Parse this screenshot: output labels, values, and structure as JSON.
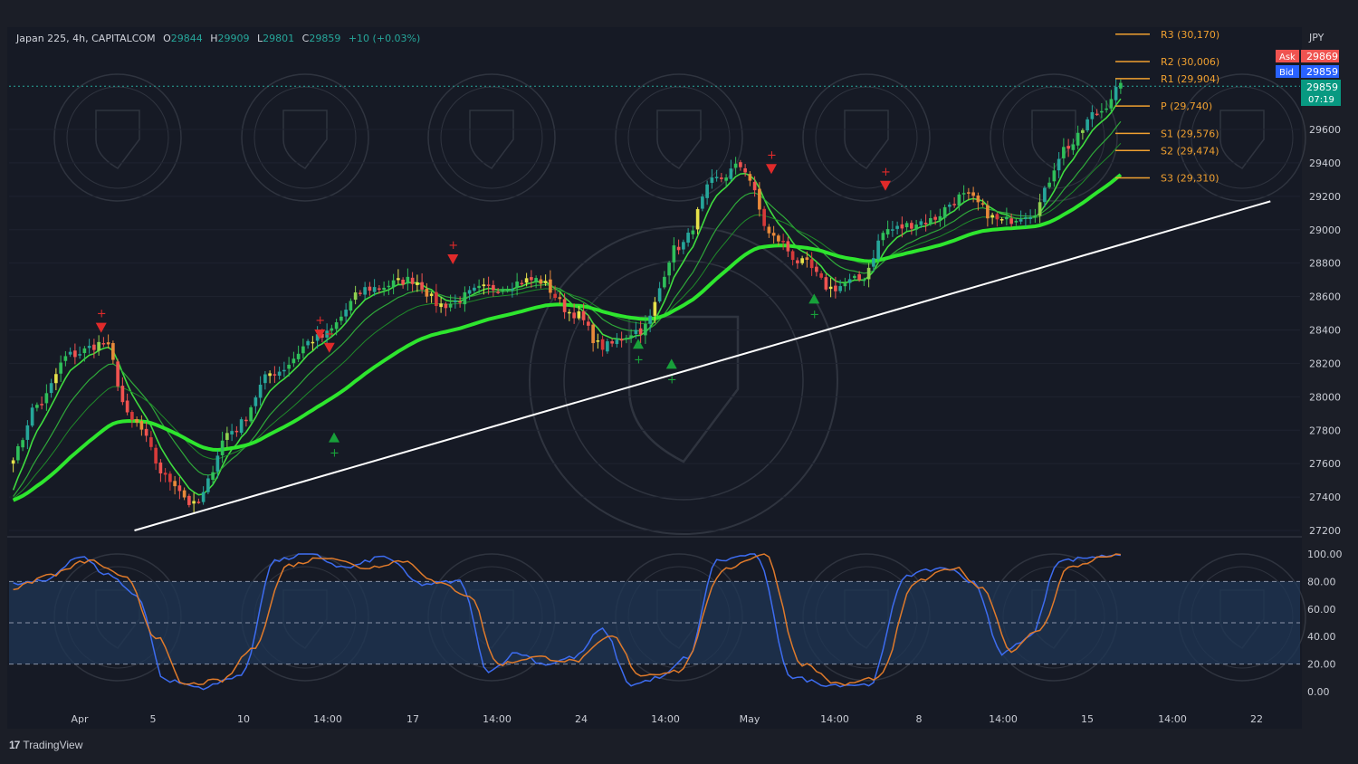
{
  "header": {
    "symbol": "Japan 225, 4h, CAPITALCOM",
    "o_label": "O",
    "o_value": "29844",
    "h_label": "H",
    "h_value": "29909",
    "l_label": "L",
    "l_value": "29801",
    "c_label": "C",
    "c_value": "29859",
    "change": "+10 (+0.03%)"
  },
  "price_scale": {
    "currency": "JPY",
    "ask_label": "Ask",
    "ask_value": "29869",
    "bid_label": "Bid",
    "bid_value": "29859",
    "last_value": "29859",
    "countdown": "07:19"
  },
  "brand": {
    "name": "TradingView"
  },
  "colors": {
    "background": "#161a25",
    "bull": "#26a69a",
    "bear": "#ef5350",
    "ema_fast": "#38e64a",
    "ema_slow": "#2ee62e",
    "pivot": "#f0a030",
    "trendline": "#ffffff",
    "stoch_k": "#3d6cf0",
    "stoch_d": "#e07a2a",
    "stoch_band": "#1f3654"
  },
  "chart_data": [
    {
      "type": "candlestick",
      "timeframe": "4h",
      "y_ticks": [
        27200,
        27400,
        27600,
        27800,
        28000,
        28200,
        28400,
        28600,
        28800,
        29000,
        29200,
        29400,
        29600
      ],
      "ylim": [
        27150,
        30200
      ],
      "x_tick_labels": [
        "Apr",
        "5",
        "10",
        "14:00",
        "17",
        "14:00",
        "24",
        "14:00",
        "May",
        "14:00",
        "8",
        "14:00",
        "15",
        "14:00",
        "22"
      ],
      "price_path_keypoints": [
        {
          "i": 0,
          "price": 27650
        },
        {
          "i": 5,
          "price": 27950
        },
        {
          "i": 12,
          "price": 28250
        },
        {
          "i": 19,
          "price": 28320
        },
        {
          "i": 25,
          "price": 27850
        },
        {
          "i": 33,
          "price": 27500
        },
        {
          "i": 38,
          "price": 27350
        },
        {
          "i": 46,
          "price": 27800
        },
        {
          "i": 55,
          "price": 28150
        },
        {
          "i": 64,
          "price": 28350
        },
        {
          "i": 75,
          "price": 28650
        },
        {
          "i": 84,
          "price": 28700
        },
        {
          "i": 90,
          "price": 28550
        },
        {
          "i": 100,
          "price": 28650
        },
        {
          "i": 110,
          "price": 28700
        },
        {
          "i": 118,
          "price": 28500
        },
        {
          "i": 124,
          "price": 28300
        },
        {
          "i": 132,
          "price": 28400
        },
        {
          "i": 140,
          "price": 28900
        },
        {
          "i": 148,
          "price": 29300
        },
        {
          "i": 153,
          "price": 29380
        },
        {
          "i": 160,
          "price": 28950
        },
        {
          "i": 166,
          "price": 28800
        },
        {
          "i": 172,
          "price": 28650
        },
        {
          "i": 178,
          "price": 28700
        },
        {
          "i": 184,
          "price": 29000
        },
        {
          "i": 192,
          "price": 29050
        },
        {
          "i": 200,
          "price": 29200
        },
        {
          "i": 208,
          "price": 29050
        },
        {
          "i": 214,
          "price": 29100
        },
        {
          "i": 222,
          "price": 29500
        },
        {
          "i": 228,
          "price": 29700
        },
        {
          "i": 233,
          "price": 29850
        }
      ],
      "pivot_levels": [
        {
          "label": "R3 (30,170)",
          "value": 30170
        },
        {
          "label": "R2 (30,006)",
          "value": 30006
        },
        {
          "label": "R1 (29,904)",
          "value": 29904
        },
        {
          "label": "P (29,740)",
          "value": 29740
        },
        {
          "label": "S1 (29,576)",
          "value": 29576
        },
        {
          "label": "S2 (29,474)",
          "value": 29474
        },
        {
          "label": "S3 (29,310)",
          "value": 29310
        }
      ],
      "trendline": {
        "start": {
          "i": 26,
          "price": 27200
        },
        "end": {
          "i": 265,
          "price": 29170
        }
      },
      "sell_signals": [
        {
          "i": 19,
          "price": 28410
        },
        {
          "i": 65,
          "price": 28370
        },
        {
          "i": 67,
          "price": 28290
        },
        {
          "i": 93,
          "price": 28820
        },
        {
          "i": 160,
          "price": 29360
        },
        {
          "i": 184,
          "price": 29260
        }
      ],
      "buy_signals": [
        {
          "i": 68,
          "price": 27760
        },
        {
          "i": 132,
          "price": 28320
        },
        {
          "i": 139,
          "price": 28200
        },
        {
          "i": 169,
          "price": 28590
        }
      ],
      "extra_ema_pairs": [
        {
          "periods": "fast",
          "offset": 0
        },
        {
          "periods": "slow",
          "offset": 1
        }
      ]
    },
    {
      "type": "line",
      "name": "",
      "y_ticks": [
        0,
        20,
        40,
        60,
        80,
        100
      ],
      "ylim": [
        -8,
        104
      ],
      "bands": [
        20,
        50,
        80
      ],
      "k_keypoints": [
        {
          "i": 0,
          "v": 78
        },
        {
          "i": 6,
          "v": 80
        },
        {
          "i": 14,
          "v": 98
        },
        {
          "i": 20,
          "v": 85
        },
        {
          "i": 26,
          "v": 70
        },
        {
          "i": 32,
          "v": 8
        },
        {
          "i": 40,
          "v": 3
        },
        {
          "i": 48,
          "v": 12
        },
        {
          "i": 55,
          "v": 95
        },
        {
          "i": 62,
          "v": 100
        },
        {
          "i": 70,
          "v": 90
        },
        {
          "i": 78,
          "v": 98
        },
        {
          "i": 86,
          "v": 78
        },
        {
          "i": 94,
          "v": 80
        },
        {
          "i": 100,
          "v": 15
        },
        {
          "i": 106,
          "v": 28
        },
        {
          "i": 112,
          "v": 20
        },
        {
          "i": 118,
          "v": 25
        },
        {
          "i": 124,
          "v": 45
        },
        {
          "i": 130,
          "v": 5
        },
        {
          "i": 136,
          "v": 10
        },
        {
          "i": 142,
          "v": 25
        },
        {
          "i": 148,
          "v": 95
        },
        {
          "i": 156,
          "v": 100
        },
        {
          "i": 164,
          "v": 10
        },
        {
          "i": 172,
          "v": 5
        },
        {
          "i": 180,
          "v": 5
        },
        {
          "i": 188,
          "v": 85
        },
        {
          "i": 196,
          "v": 90
        },
        {
          "i": 202,
          "v": 80
        },
        {
          "i": 208,
          "v": 28
        },
        {
          "i": 214,
          "v": 40
        },
        {
          "i": 220,
          "v": 95
        },
        {
          "i": 228,
          "v": 98
        },
        {
          "i": 233,
          "v": 100
        }
      ],
      "d_keypoints": [
        {
          "i": 0,
          "v": 75
        },
        {
          "i": 8,
          "v": 85
        },
        {
          "i": 16,
          "v": 95
        },
        {
          "i": 24,
          "v": 82
        },
        {
          "i": 30,
          "v": 40
        },
        {
          "i": 36,
          "v": 5
        },
        {
          "i": 44,
          "v": 8
        },
        {
          "i": 50,
          "v": 30
        },
        {
          "i": 58,
          "v": 92
        },
        {
          "i": 66,
          "v": 98
        },
        {
          "i": 74,
          "v": 90
        },
        {
          "i": 82,
          "v": 95
        },
        {
          "i": 90,
          "v": 78
        },
        {
          "i": 96,
          "v": 70
        },
        {
          "i": 102,
          "v": 20
        },
        {
          "i": 110,
          "v": 25
        },
        {
          "i": 118,
          "v": 22
        },
        {
          "i": 126,
          "v": 40
        },
        {
          "i": 132,
          "v": 12
        },
        {
          "i": 140,
          "v": 15
        },
        {
          "i": 150,
          "v": 90
        },
        {
          "i": 158,
          "v": 100
        },
        {
          "i": 166,
          "v": 20
        },
        {
          "i": 174,
          "v": 5
        },
        {
          "i": 182,
          "v": 10
        },
        {
          "i": 190,
          "v": 80
        },
        {
          "i": 198,
          "v": 90
        },
        {
          "i": 204,
          "v": 75
        },
        {
          "i": 210,
          "v": 30
        },
        {
          "i": 216,
          "v": 45
        },
        {
          "i": 222,
          "v": 90
        },
        {
          "i": 230,
          "v": 98
        },
        {
          "i": 233,
          "v": 100
        }
      ]
    }
  ]
}
